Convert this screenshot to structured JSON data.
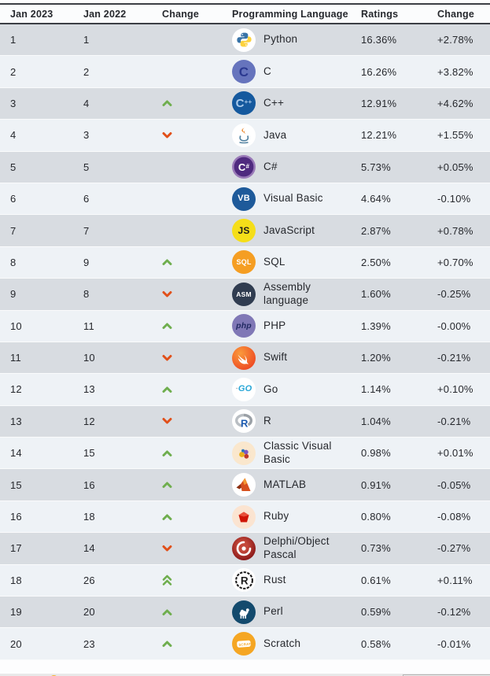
{
  "table": {
    "headers": [
      "Jan 2023",
      "Jan 2022",
      "Change",
      "Programming Language",
      "Ratings",
      "Change"
    ],
    "rows": [
      {
        "rank_2023": "1",
        "rank_2022": "1",
        "move": "none",
        "icon": "python-icon",
        "language": "Python",
        "rating": "16.36%",
        "change": "+2.78%"
      },
      {
        "rank_2023": "2",
        "rank_2022": "2",
        "move": "none",
        "icon": "c-icon",
        "language": "C",
        "rating": "16.26%",
        "change": "+3.82%"
      },
      {
        "rank_2023": "3",
        "rank_2022": "4",
        "move": "up",
        "icon": "cpp-icon",
        "language": "C++",
        "rating": "12.91%",
        "change": "+4.62%"
      },
      {
        "rank_2023": "4",
        "rank_2022": "3",
        "move": "down",
        "icon": "java-icon",
        "language": "Java",
        "rating": "12.21%",
        "change": "+1.55%"
      },
      {
        "rank_2023": "5",
        "rank_2022": "5",
        "move": "none",
        "icon": "csharp-icon",
        "language": "C#",
        "rating": "5.73%",
        "change": "+0.05%"
      },
      {
        "rank_2023": "6",
        "rank_2022": "6",
        "move": "none",
        "icon": "visual-basic-icon",
        "language": "Visual Basic",
        "rating": "4.64%",
        "change": "-0.10%"
      },
      {
        "rank_2023": "7",
        "rank_2022": "7",
        "move": "none",
        "icon": "javascript-icon",
        "language": "JavaScript",
        "rating": "2.87%",
        "change": "+0.78%"
      },
      {
        "rank_2023": "8",
        "rank_2022": "9",
        "move": "up",
        "icon": "sql-icon",
        "language": "SQL",
        "rating": "2.50%",
        "change": "+0.70%"
      },
      {
        "rank_2023": "9",
        "rank_2022": "8",
        "move": "down",
        "icon": "assembly-icon",
        "language": "Assembly language",
        "rating": "1.60%",
        "change": "-0.25%"
      },
      {
        "rank_2023": "10",
        "rank_2022": "11",
        "move": "up",
        "icon": "php-icon",
        "language": "PHP",
        "rating": "1.39%",
        "change": "-0.00%"
      },
      {
        "rank_2023": "11",
        "rank_2022": "10",
        "move": "down",
        "icon": "swift-icon",
        "language": "Swift",
        "rating": "1.20%",
        "change": "-0.21%"
      },
      {
        "rank_2023": "12",
        "rank_2022": "13",
        "move": "up",
        "icon": "go-icon",
        "language": "Go",
        "rating": "1.14%",
        "change": "+0.10%"
      },
      {
        "rank_2023": "13",
        "rank_2022": "12",
        "move": "down",
        "icon": "r-icon",
        "language": "R",
        "rating": "1.04%",
        "change": "-0.21%"
      },
      {
        "rank_2023": "14",
        "rank_2022": "15",
        "move": "up",
        "icon": "classic-visual-basic-icon",
        "language": "Classic Visual Basic",
        "rating": "0.98%",
        "change": "+0.01%"
      },
      {
        "rank_2023": "15",
        "rank_2022": "16",
        "move": "up",
        "icon": "matlab-icon",
        "language": "MATLAB",
        "rating": "0.91%",
        "change": "-0.05%"
      },
      {
        "rank_2023": "16",
        "rank_2022": "18",
        "move": "up",
        "icon": "ruby-icon",
        "language": "Ruby",
        "rating": "0.80%",
        "change": "-0.08%"
      },
      {
        "rank_2023": "17",
        "rank_2022": "14",
        "move": "down",
        "icon": "delphi-icon",
        "language": "Delphi/Object Pascal",
        "rating": "0.73%",
        "change": "-0.27%"
      },
      {
        "rank_2023": "18",
        "rank_2022": "26",
        "move": "up2",
        "icon": "rust-icon",
        "language": "Rust",
        "rating": "0.61%",
        "change": "+0.11%"
      },
      {
        "rank_2023": "19",
        "rank_2022": "20",
        "move": "up",
        "icon": "perl-icon",
        "language": "Perl",
        "rating": "0.59%",
        "change": "-0.12%"
      },
      {
        "rank_2023": "20",
        "rank_2022": "23",
        "move": "up",
        "icon": "scratch-icon",
        "language": "Scratch",
        "rating": "0.58%",
        "change": "-0.01%"
      }
    ]
  },
  "colors": {
    "row_odd": "#d8dce1",
    "row_even": "#eef2f6",
    "header_border": "#3c3f45",
    "up_arrow": "#6fae4e",
    "down_arrow": "#e1501a",
    "text": "#26282d"
  }
}
